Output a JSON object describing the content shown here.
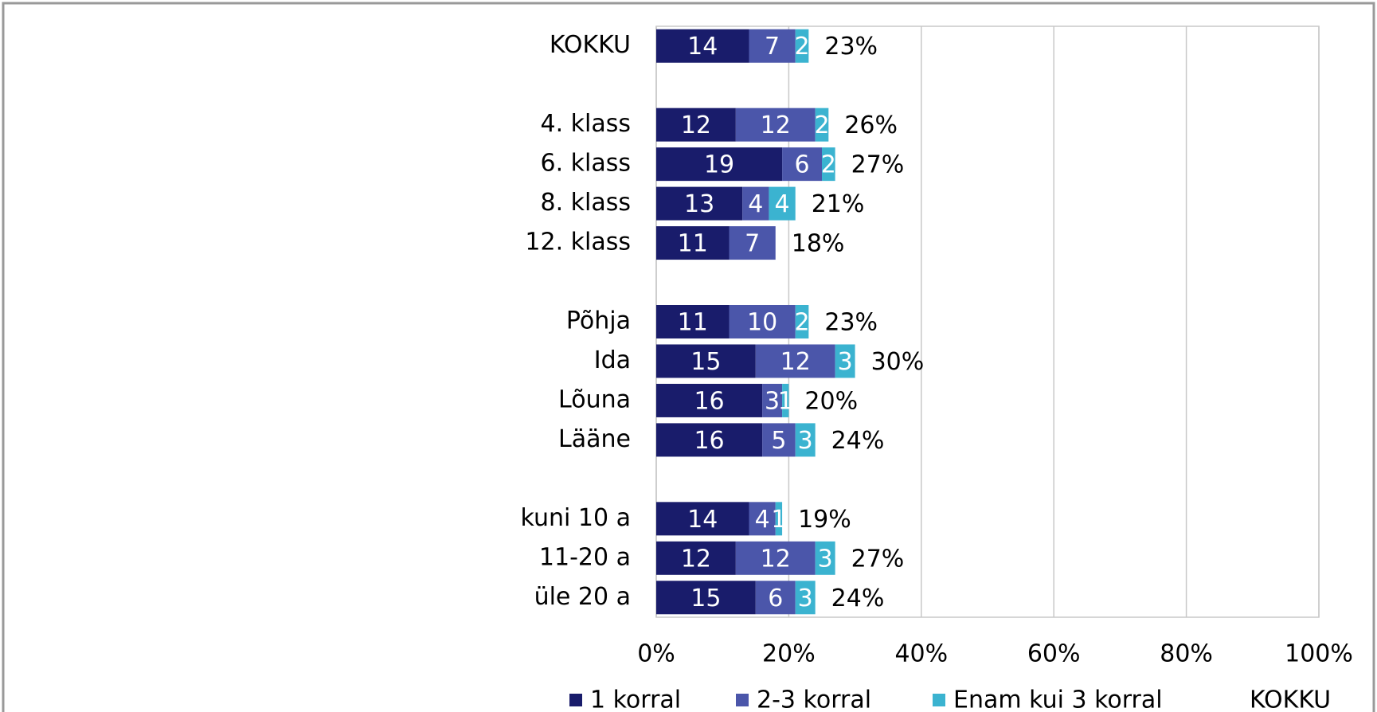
{
  "chart_data": {
    "type": "stacked-barh",
    "categories": [
      "KOKKU",
      null,
      "4. klass",
      "6. klass",
      "8. klass",
      "12. klass",
      null,
      "Põhja",
      "Ida",
      "Lõuna",
      "Lääne",
      null,
      "kuni 10 a",
      "11-20 a",
      "üle 20 a"
    ],
    "series": [
      {
        "name": "1 korral",
        "color": "#191c6b",
        "values": [
          14,
          null,
          12,
          19,
          13,
          11,
          null,
          11,
          15,
          16,
          16,
          null,
          14,
          12,
          15
        ]
      },
      {
        "name": "2-3 korral",
        "color": "#4b56aa",
        "values": [
          7,
          null,
          12,
          6,
          4,
          7,
          null,
          10,
          12,
          3,
          5,
          null,
          4,
          12,
          6
        ]
      },
      {
        "name": "Enam kui 3 korral",
        "color": "#3bb3d0",
        "values": [
          2,
          null,
          2,
          2,
          4,
          null,
          null,
          2,
          3,
          1,
          3,
          null,
          1,
          3,
          3
        ]
      },
      {
        "name": "KOKKU",
        "values": [
          23,
          null,
          26,
          27,
          21,
          18,
          null,
          23,
          30,
          20,
          24,
          null,
          19,
          27,
          24
        ],
        "value_labels": [
          "23%",
          null,
          "26%",
          "27%",
          "21%",
          "18%",
          null,
          "23%",
          "30%",
          "20%",
          "24%",
          null,
          "19%",
          "27%",
          "24%"
        ]
      }
    ],
    "xlim": [
      0,
      100
    ],
    "xticks": [
      {
        "value": 0,
        "label": "0%"
      },
      {
        "value": 20,
        "label": "20%"
      },
      {
        "value": 40,
        "label": "40%"
      },
      {
        "value": 60,
        "label": "60%"
      },
      {
        "value": 80,
        "label": "80%"
      },
      {
        "value": 100,
        "label": "100%"
      }
    ],
    "grid": true,
    "legend": "bottom"
  }
}
